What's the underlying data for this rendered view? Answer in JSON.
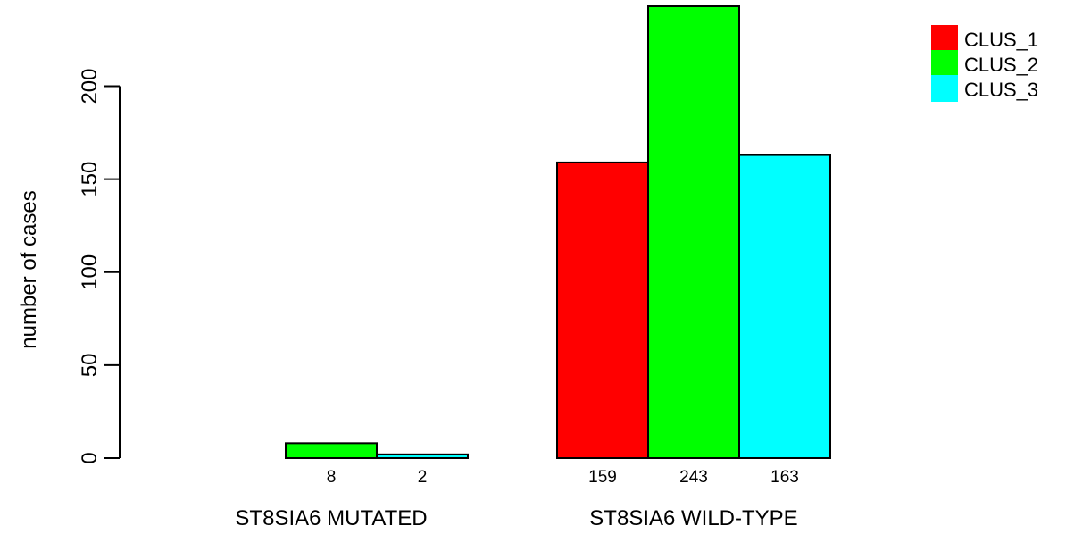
{
  "chart_data": {
    "type": "bar",
    "title": "",
    "xlabel": "",
    "ylabel": "number of cases",
    "ylim": [
      0,
      243
    ],
    "yticks": [
      0,
      50,
      100,
      150,
      200
    ],
    "categories": [
      "ST8SIA6 MUTATED",
      "ST8SIA6 WILD-TYPE"
    ],
    "series": [
      {
        "name": "CLUS_1",
        "color": "#ff0000",
        "values": [
          0,
          159
        ],
        "labels": [
          "",
          "159"
        ]
      },
      {
        "name": "CLUS_2",
        "color": "#00ff00",
        "values": [
          8,
          243
        ],
        "labels": [
          "8",
          "243"
        ]
      },
      {
        "name": "CLUS_3",
        "color": "#00ffff",
        "values": [
          2,
          163
        ],
        "labels": [
          "2",
          "163"
        ]
      }
    ],
    "grid": false,
    "legend_position": "top-right"
  }
}
